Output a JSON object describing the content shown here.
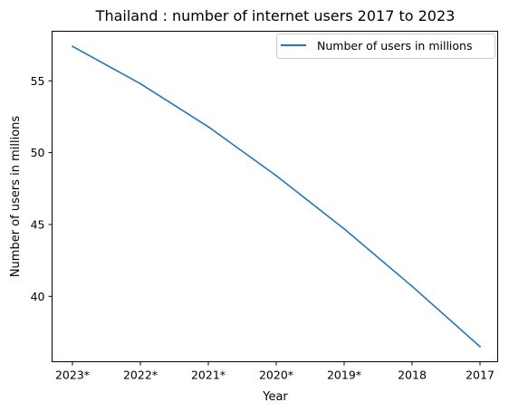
{
  "chart_data": {
    "type": "line",
    "title": "Thailand : number of internet users 2017 to 2023",
    "xlabel": "Year",
    "ylabel": "Number of users in millions",
    "categories": [
      "2023*",
      "2022*",
      "2021*",
      "2020*",
      "2019*",
      "2018",
      "2017"
    ],
    "series": [
      {
        "name": "Number of users in millions",
        "color": "#1f77b4",
        "values": [
          57.4,
          54.8,
          51.8,
          48.4,
          44.7,
          40.7,
          36.5
        ]
      }
    ],
    "ylim": [
      35.45,
      58.45
    ],
    "yticks": [
      40,
      45,
      50,
      55
    ],
    "grid": false,
    "legend_position": "upper right"
  }
}
